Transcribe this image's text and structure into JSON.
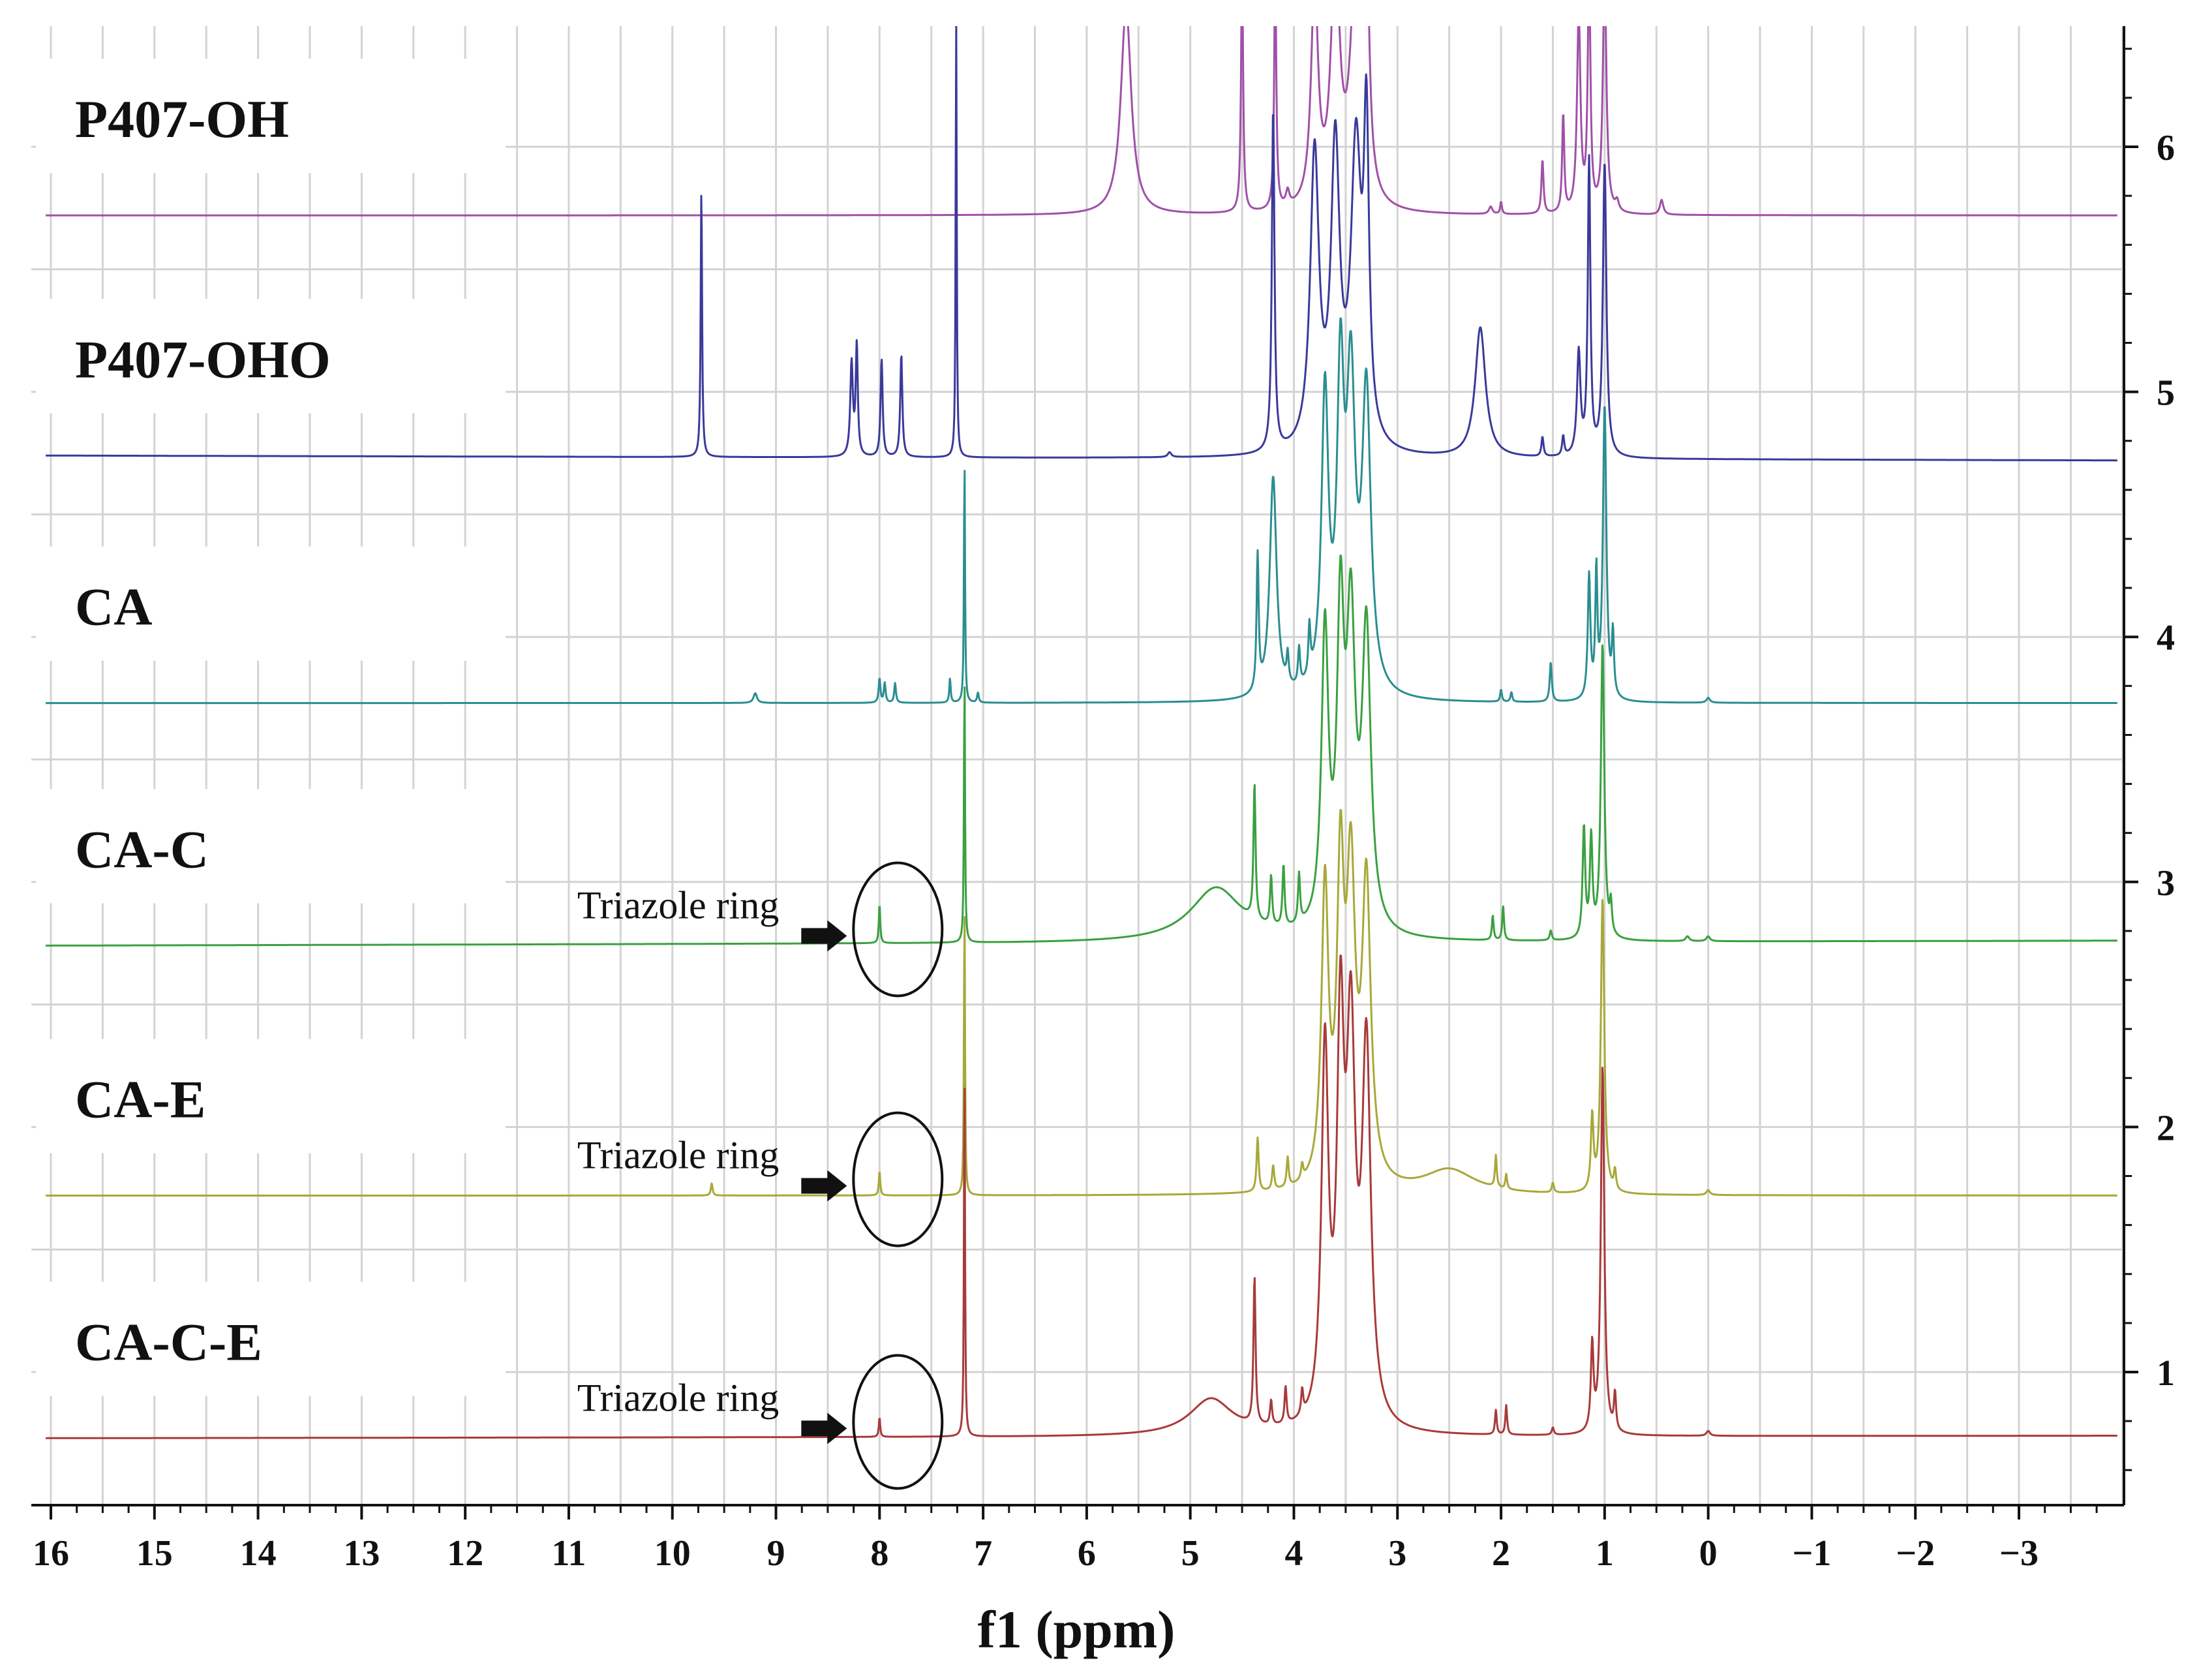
{
  "chart_data": {
    "type": "line",
    "title": "",
    "xlabel": "f1 (ppm)",
    "ylabel": "",
    "xlim": [
      16.2,
      -4.0
    ],
    "ylim": [
      0.5,
      6.5
    ],
    "x_tick_labels": [
      "16",
      "15",
      "14",
      "13",
      "12",
      "11",
      "10",
      "9",
      "8",
      "7",
      "6",
      "5",
      "4",
      "3",
      "2",
      "1",
      "0",
      "−1",
      "−2",
      "−3"
    ],
    "x_ticks": [
      16,
      15,
      14,
      13,
      12,
      11,
      10,
      9,
      8,
      7,
      6,
      5,
      4,
      3,
      2,
      1,
      0,
      -1,
      -2,
      -3
    ],
    "y_tick_labels": [
      "1",
      "2",
      "3",
      "4",
      "5",
      "6"
    ],
    "y_ticks": [
      1,
      2,
      3,
      4,
      5,
      6
    ],
    "grid": true,
    "series": [
      {
        "name": "P407-OH",
        "color": "#a050a8",
        "baseline": [
          5.72,
          5.72
        ],
        "peaks": [
          [
            5.62,
            0.85,
            0.06
          ],
          [
            4.5,
            1.0,
            0.012
          ],
          [
            4.18,
            1.0,
            0.012
          ],
          [
            4.06,
            0.06,
            0.02
          ],
          [
            3.8,
            0.9,
            0.04
          ],
          [
            3.6,
            1.0,
            0.05
          ],
          [
            3.4,
            1.0,
            0.06
          ],
          [
            3.3,
            1.0,
            0.03
          ],
          [
            2.1,
            0.03,
            0.02
          ],
          [
            2.0,
            0.05,
            0.01
          ],
          [
            1.6,
            0.22,
            0.012
          ],
          [
            1.4,
            0.4,
            0.012
          ],
          [
            1.25,
            0.8,
            0.02
          ],
          [
            1.15,
            1.0,
            0.015
          ],
          [
            1.0,
            1.0,
            0.02
          ],
          [
            0.88,
            0.04,
            0.02
          ],
          [
            0.45,
            0.06,
            0.02
          ]
        ]
      },
      {
        "name": "P407-OHO",
        "color": "#3a3a9a",
        "baseline": [
          4.74,
          4.72
        ],
        "peaks": [
          [
            9.72,
            1.1,
            0.008
          ],
          [
            8.27,
            0.38,
            0.015
          ],
          [
            8.22,
            0.45,
            0.012
          ],
          [
            7.98,
            0.4,
            0.012
          ],
          [
            7.79,
            0.42,
            0.012
          ],
          [
            7.26,
            1.8,
            0.006
          ],
          [
            5.2,
            0.02,
            0.02
          ],
          [
            4.2,
            1.4,
            0.015
          ],
          [
            3.8,
            1.2,
            0.05
          ],
          [
            3.6,
            1.2,
            0.05
          ],
          [
            3.4,
            1.2,
            0.06
          ],
          [
            3.3,
            1.2,
            0.03
          ],
          [
            2.2,
            0.53,
            0.06
          ],
          [
            1.6,
            0.08,
            0.012
          ],
          [
            1.4,
            0.08,
            0.012
          ],
          [
            1.25,
            0.42,
            0.02
          ],
          [
            1.15,
            1.2,
            0.015
          ],
          [
            1.0,
            1.2,
            0.02
          ]
        ]
      },
      {
        "name": "CA",
        "color": "#2a8e90",
        "baseline": [
          3.73,
          3.73
        ],
        "peaks": [
          [
            9.2,
            0.04,
            0.02
          ],
          [
            8.0,
            0.1,
            0.01
          ],
          [
            7.95,
            0.08,
            0.01
          ],
          [
            7.85,
            0.08,
            0.01
          ],
          [
            7.32,
            0.1,
            0.008
          ],
          [
            7.18,
            1.0,
            0.006
          ],
          [
            7.05,
            0.04,
            0.01
          ],
          [
            4.35,
            0.55,
            0.012
          ],
          [
            4.2,
            0.9,
            0.04
          ],
          [
            4.06,
            0.12,
            0.012
          ],
          [
            3.95,
            0.15,
            0.012
          ],
          [
            3.85,
            0.2,
            0.012
          ],
          [
            3.7,
            1.2,
            0.04
          ],
          [
            3.55,
            1.2,
            0.04
          ],
          [
            3.45,
            1.2,
            0.05
          ],
          [
            3.3,
            1.2,
            0.05
          ],
          [
            2.0,
            0.05,
            0.01
          ],
          [
            1.9,
            0.04,
            0.01
          ],
          [
            1.52,
            0.16,
            0.012
          ],
          [
            1.15,
            0.5,
            0.015
          ],
          [
            1.08,
            0.5,
            0.012
          ],
          [
            1.0,
            1.2,
            0.02
          ],
          [
            0.92,
            0.25,
            0.012
          ],
          [
            0.0,
            0.02,
            0.02
          ]
        ]
      },
      {
        "name": "CA-C",
        "color": "#3aa040",
        "baseline": [
          2.74,
          2.76
        ],
        "peaks": [
          [
            8.0,
            0.16,
            0.008
          ],
          [
            7.18,
            1.1,
            0.006
          ],
          [
            4.75,
            0.22,
            0.3
          ],
          [
            4.38,
            0.55,
            0.012
          ],
          [
            4.22,
            0.2,
            0.012
          ],
          [
            4.1,
            0.25,
            0.012
          ],
          [
            3.95,
            0.2,
            0.012
          ],
          [
            3.7,
            1.2,
            0.04
          ],
          [
            3.55,
            1.2,
            0.04
          ],
          [
            3.45,
            1.2,
            0.05
          ],
          [
            3.3,
            1.2,
            0.05
          ],
          [
            2.08,
            0.1,
            0.01
          ],
          [
            1.98,
            0.14,
            0.01
          ],
          [
            1.52,
            0.04,
            0.012
          ],
          [
            1.2,
            0.45,
            0.015
          ],
          [
            1.13,
            0.4,
            0.015
          ],
          [
            1.02,
            1.2,
            0.02
          ],
          [
            0.94,
            0.12,
            0.012
          ],
          [
            0.2,
            0.02,
            0.02
          ],
          [
            0.0,
            0.02,
            0.02
          ]
        ]
      },
      {
        "name": "CA-E",
        "color": "#a8a83a",
        "baseline": [
          1.72,
          1.72
        ],
        "peaks": [
          [
            9.62,
            0.05,
            0.01
          ],
          [
            8.0,
            0.1,
            0.008
          ],
          [
            7.18,
            1.2,
            0.006
          ],
          [
            4.35,
            0.22,
            0.012
          ],
          [
            4.2,
            0.1,
            0.012
          ],
          [
            4.06,
            0.12,
            0.012
          ],
          [
            3.92,
            0.06,
            0.012
          ],
          [
            3.7,
            1.2,
            0.04
          ],
          [
            3.55,
            1.2,
            0.04
          ],
          [
            3.45,
            1.2,
            0.05
          ],
          [
            3.3,
            1.2,
            0.05
          ],
          [
            2.5,
            0.1,
            0.3
          ],
          [
            2.05,
            0.13,
            0.01
          ],
          [
            1.95,
            0.06,
            0.01
          ],
          [
            1.5,
            0.04,
            0.012
          ],
          [
            1.12,
            0.3,
            0.015
          ],
          [
            1.02,
            1.2,
            0.02
          ],
          [
            0.9,
            0.08,
            0.012
          ],
          [
            0.0,
            0.02,
            0.02
          ]
        ]
      },
      {
        "name": "CA-C-E",
        "color": "#a83a3a",
        "baseline": [
          0.73,
          0.74
        ],
        "peaks": [
          [
            8.0,
            0.08,
            0.008
          ],
          [
            7.18,
            1.5,
            0.006
          ],
          [
            4.8,
            0.15,
            0.25
          ],
          [
            4.38,
            0.6,
            0.012
          ],
          [
            4.22,
            0.1,
            0.012
          ],
          [
            4.08,
            0.15,
            0.012
          ],
          [
            3.92,
            0.1,
            0.012
          ],
          [
            3.7,
            1.5,
            0.04
          ],
          [
            3.55,
            1.5,
            0.04
          ],
          [
            3.45,
            1.5,
            0.05
          ],
          [
            3.3,
            1.5,
            0.05
          ],
          [
            2.05,
            0.1,
            0.01
          ],
          [
            1.95,
            0.12,
            0.01
          ],
          [
            1.5,
            0.03,
            0.012
          ],
          [
            1.12,
            0.35,
            0.015
          ],
          [
            1.02,
            1.5,
            0.02
          ],
          [
            0.9,
            0.15,
            0.012
          ],
          [
            0.0,
            0.02,
            0.02
          ]
        ]
      }
    ],
    "annotations": [
      {
        "text": "Triazole ring",
        "series": "CA-C",
        "x": 8.0
      },
      {
        "text": "Triazole ring",
        "series": "CA-E",
        "x": 8.0
      },
      {
        "text": "Triazole ring",
        "series": "CA-C-E",
        "x": 8.0
      }
    ]
  }
}
